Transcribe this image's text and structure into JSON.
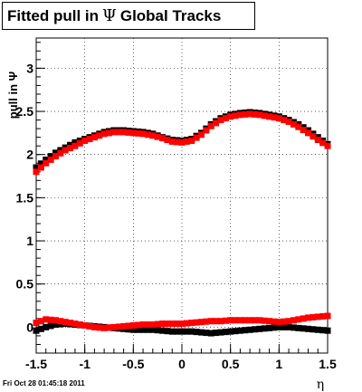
{
  "chart_data": {
    "type": "scatter",
    "title_prefix": "Fitted pull in",
    "title_symbol": "Ψ",
    "title_suffix": "Global Tracks",
    "ylabel": "pull in Ψ",
    "xlabel": "η",
    "xlim": [
      -1.5,
      1.5
    ],
    "ylim": [
      -0.3,
      3.35
    ],
    "x_ticks": [
      -1.5,
      -1,
      -0.5,
      0,
      0.5,
      1,
      1.5
    ],
    "x_tick_labels": [
      "-1.5",
      "-1",
      "-0.5",
      "0",
      "0.5",
      "1",
      "1.5"
    ],
    "y_ticks": [
      0,
      0.5,
      1,
      1.5,
      2,
      2.5,
      3
    ],
    "y_tick_labels": [
      "0",
      "0.5",
      "1",
      "1.5",
      "2",
      "2.5",
      "3"
    ],
    "grid": true,
    "series": [
      {
        "color": "#000000",
        "x": [
          -1.5,
          -1.4,
          -1.3,
          -1.2,
          -1.1,
          -1.0,
          -0.9,
          -0.8,
          -0.7,
          -0.6,
          -0.5,
          -0.4,
          -0.3,
          -0.2,
          -0.1,
          0.0,
          0.1,
          0.2,
          0.3,
          0.4,
          0.5,
          0.6,
          0.7,
          0.8,
          0.9,
          1.0,
          1.1,
          1.2,
          1.3,
          1.4,
          1.5
        ],
        "y": [
          1.85,
          1.94,
          2.02,
          2.08,
          2.14,
          2.18,
          2.22,
          2.26,
          2.28,
          2.28,
          2.27,
          2.26,
          2.24,
          2.2,
          2.17,
          2.16,
          2.18,
          2.25,
          2.35,
          2.42,
          2.46,
          2.48,
          2.49,
          2.48,
          2.46,
          2.44,
          2.4,
          2.35,
          2.28,
          2.2,
          2.12
        ]
      },
      {
        "color": "#ff0000",
        "x": [
          -1.5,
          -1.4,
          -1.3,
          -1.2,
          -1.1,
          -1.0,
          -0.9,
          -0.8,
          -0.7,
          -0.6,
          -0.5,
          -0.4,
          -0.3,
          -0.2,
          -0.1,
          0.0,
          0.1,
          0.2,
          0.3,
          0.4,
          0.5,
          0.6,
          0.7,
          0.8,
          0.9,
          1.0,
          1.1,
          1.2,
          1.3,
          1.4,
          1.5
        ],
        "y": [
          1.8,
          1.9,
          1.98,
          2.05,
          2.1,
          2.16,
          2.2,
          2.24,
          2.26,
          2.26,
          2.25,
          2.24,
          2.22,
          2.19,
          2.15,
          2.14,
          2.16,
          2.23,
          2.33,
          2.4,
          2.44,
          2.46,
          2.47,
          2.46,
          2.44,
          2.42,
          2.38,
          2.32,
          2.25,
          2.17,
          2.1
        ]
      },
      {
        "color": "#000000",
        "x": [
          -1.5,
          -1.4,
          -1.3,
          -1.2,
          -1.1,
          -1.0,
          -0.9,
          -0.8,
          -0.7,
          -0.6,
          -0.5,
          -0.4,
          -0.3,
          -0.2,
          -0.1,
          0.0,
          0.1,
          0.2,
          0.3,
          0.4,
          0.5,
          0.6,
          0.7,
          0.8,
          0.9,
          1.0,
          1.1,
          1.2,
          1.3,
          1.4,
          1.5
        ],
        "y": [
          -0.04,
          0.0,
          0.03,
          0.04,
          0.03,
          0.02,
          0.01,
          0.0,
          -0.01,
          -0.02,
          -0.03,
          -0.03,
          -0.03,
          -0.04,
          -0.05,
          -0.05,
          -0.05,
          -0.06,
          -0.07,
          -0.06,
          -0.05,
          -0.04,
          -0.03,
          -0.02,
          -0.01,
          0.0,
          0.0,
          -0.01,
          -0.02,
          -0.03,
          -0.04
        ]
      },
      {
        "color": "#ff0000",
        "x": [
          -1.5,
          -1.4,
          -1.3,
          -1.2,
          -1.1,
          -1.0,
          -0.9,
          -0.8,
          -0.7,
          -0.6,
          -0.5,
          -0.4,
          -0.3,
          -0.2,
          -0.1,
          0.0,
          0.1,
          0.2,
          0.3,
          0.4,
          0.5,
          0.6,
          0.7,
          0.8,
          0.9,
          1.0,
          1.1,
          1.2,
          1.3,
          1.4,
          1.5
        ],
        "y": [
          0.05,
          0.09,
          0.08,
          0.06,
          0.04,
          0.02,
          0.0,
          -0.01,
          0.0,
          0.01,
          0.02,
          0.03,
          0.03,
          0.04,
          0.04,
          0.04,
          0.05,
          0.06,
          0.07,
          0.07,
          0.08,
          0.08,
          0.08,
          0.08,
          0.07,
          0.06,
          0.07,
          0.09,
          0.11,
          0.12,
          0.13
        ]
      }
    ]
  },
  "footer": {
    "timestamp": "Fri Oct 28 01:45:18 2011"
  }
}
